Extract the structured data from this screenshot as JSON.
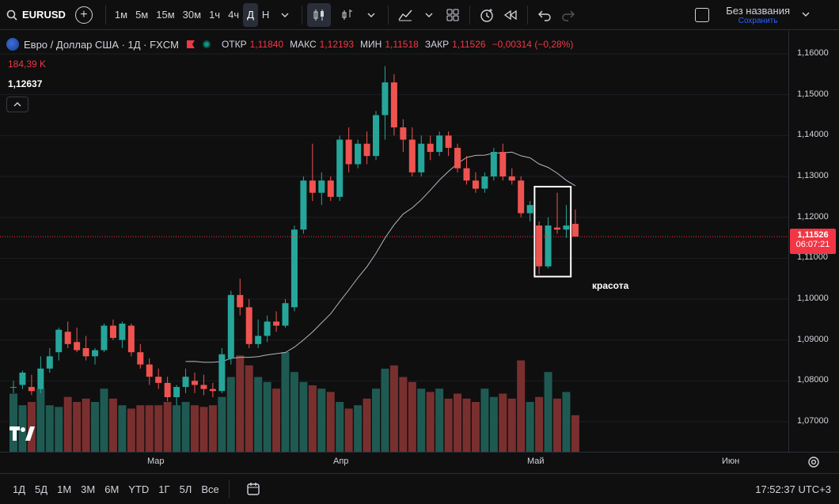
{
  "toolbar": {
    "symbol": "EURUSD",
    "timeframes": [
      "1м",
      "5м",
      "15м",
      "30м",
      "1ч",
      "4ч",
      "Д",
      "Н"
    ],
    "active_timeframe": "Д",
    "layout_name": "Без названия",
    "layout_status": "Сохранить"
  },
  "legend": {
    "title": "Евро / Доллар США · 1Д · FXCM",
    "open_label": "ОТКР",
    "open": "1,11840",
    "high_label": "МАКС",
    "high": "1,12193",
    "low_label": "МИН",
    "low": "1,11518",
    "close_label": "ЗАКР",
    "close": "1,11526",
    "change": "−0,00314 (−0,28%)",
    "volume": "184,39 K",
    "ma_value": "1,12637"
  },
  "price_axis": [
    "1,16000",
    "1,15000",
    "1,14000",
    "1,13000",
    "1,12000",
    "1,11000",
    "1,10000",
    "1,09000",
    "1,08000",
    "1,07000"
  ],
  "current_price": {
    "price": "1,11526",
    "countdown": "06:07:21"
  },
  "time_axis": [
    "Мар",
    "Апр",
    "Май",
    "Июн"
  ],
  "annotation": {
    "label": "красота"
  },
  "bottom": {
    "ranges": [
      "1Д",
      "5Д",
      "1М",
      "3М",
      "6М",
      "YTD",
      "1Г",
      "5Л",
      "Все"
    ],
    "clock": "17:52:37 UTC+3"
  },
  "colors": {
    "up": "#26a69a",
    "down": "#ef5350",
    "vol_up": "#1f5a52",
    "vol_down": "#7a2f2f"
  },
  "chart_data": {
    "type": "candlestick",
    "y_range": [
      1.065,
      1.168
    ],
    "candles": [
      {
        "o": 1.0785,
        "h": 1.08,
        "l": 1.077,
        "c": 1.0785
      },
      {
        "o": 1.079,
        "h": 1.0825,
        "l": 1.078,
        "c": 1.082
      },
      {
        "o": 1.0785,
        "h": 1.0815,
        "l": 1.0765,
        "c": 1.0775
      },
      {
        "o": 1.078,
        "h": 1.086,
        "l": 1.077,
        "c": 1.083
      },
      {
        "o": 1.083,
        "h": 1.088,
        "l": 1.082,
        "c": 1.086
      },
      {
        "o": 1.087,
        "h": 1.093,
        "l": 1.085,
        "c": 1.0925
      },
      {
        "o": 1.092,
        "h": 1.0945,
        "l": 1.088,
        "c": 1.089
      },
      {
        "o": 1.0895,
        "h": 1.093,
        "l": 1.087,
        "c": 1.0875
      },
      {
        "o": 1.088,
        "h": 1.091,
        "l": 1.085,
        "c": 1.086
      },
      {
        "o": 1.086,
        "h": 1.088,
        "l": 1.084,
        "c": 1.0875
      },
      {
        "o": 1.0875,
        "h": 1.094,
        "l": 1.087,
        "c": 1.0935
      },
      {
        "o": 1.0935,
        "h": 1.095,
        "l": 1.09,
        "c": 1.0905
      },
      {
        "o": 1.09,
        "h": 1.0945,
        "l": 1.088,
        "c": 1.094
      },
      {
        "o": 1.0935,
        "h": 1.094,
        "l": 1.086,
        "c": 1.087
      },
      {
        "o": 1.087,
        "h": 1.089,
        "l": 1.083,
        "c": 1.084
      },
      {
        "o": 1.084,
        "h": 1.0855,
        "l": 1.079,
        "c": 1.081
      },
      {
        "o": 1.081,
        "h": 1.083,
        "l": 1.078,
        "c": 1.0795
      },
      {
        "o": 1.0795,
        "h": 1.081,
        "l": 1.075,
        "c": 1.076
      },
      {
        "o": 1.076,
        "h": 1.079,
        "l": 1.074,
        "c": 1.0785
      },
      {
        "o": 1.0785,
        "h": 1.083,
        "l": 1.077,
        "c": 1.081
      },
      {
        "o": 1.08,
        "h": 1.082,
        "l": 1.077,
        "c": 1.079
      },
      {
        "o": 1.079,
        "h": 1.0815,
        "l": 1.0765,
        "c": 1.078
      },
      {
        "o": 1.078,
        "h": 1.0795,
        "l": 1.076,
        "c": 1.0775
      },
      {
        "o": 1.0775,
        "h": 1.088,
        "l": 1.077,
        "c": 1.0865
      },
      {
        "o": 1.0855,
        "h": 1.102,
        "l": 1.084,
        "c": 1.101
      },
      {
        "o": 1.101,
        "h": 1.105,
        "l": 1.096,
        "c": 1.098
      },
      {
        "o": 1.098,
        "h": 1.1,
        "l": 1.088,
        "c": 1.089
      },
      {
        "o": 1.089,
        "h": 1.095,
        "l": 1.088,
        "c": 1.091
      },
      {
        "o": 1.091,
        "h": 1.096,
        "l": 1.0895,
        "c": 1.0945
      },
      {
        "o": 1.0945,
        "h": 1.097,
        "l": 1.092,
        "c": 1.0935
      },
      {
        "o": 1.0935,
        "h": 1.1,
        "l": 1.093,
        "c": 1.099
      },
      {
        "o": 1.098,
        "h": 1.118,
        "l": 1.097,
        "c": 1.117
      },
      {
        "o": 1.117,
        "h": 1.13,
        "l": 1.116,
        "c": 1.129
      },
      {
        "o": 1.129,
        "h": 1.138,
        "l": 1.124,
        "c": 1.126
      },
      {
        "o": 1.126,
        "h": 1.131,
        "l": 1.123,
        "c": 1.129
      },
      {
        "o": 1.129,
        "h": 1.13,
        "l": 1.124,
        "c": 1.125
      },
      {
        "o": 1.125,
        "h": 1.14,
        "l": 1.124,
        "c": 1.139
      },
      {
        "o": 1.139,
        "h": 1.142,
        "l": 1.131,
        "c": 1.133
      },
      {
        "o": 1.133,
        "h": 1.139,
        "l": 1.132,
        "c": 1.138
      },
      {
        "o": 1.138,
        "h": 1.141,
        "l": 1.133,
        "c": 1.135
      },
      {
        "o": 1.135,
        "h": 1.146,
        "l": 1.134,
        "c": 1.145
      },
      {
        "o": 1.145,
        "h": 1.157,
        "l": 1.139,
        "c": 1.153
      },
      {
        "o": 1.153,
        "h": 1.155,
        "l": 1.14,
        "c": 1.142
      },
      {
        "o": 1.142,
        "h": 1.144,
        "l": 1.136,
        "c": 1.139
      },
      {
        "o": 1.139,
        "h": 1.142,
        "l": 1.13,
        "c": 1.131
      },
      {
        "o": 1.131,
        "h": 1.14,
        "l": 1.13,
        "c": 1.138
      },
      {
        "o": 1.138,
        "h": 1.14,
        "l": 1.134,
        "c": 1.136
      },
      {
        "o": 1.136,
        "h": 1.141,
        "l": 1.135,
        "c": 1.14
      },
      {
        "o": 1.14,
        "h": 1.141,
        "l": 1.135,
        "c": 1.137
      },
      {
        "o": 1.137,
        "h": 1.138,
        "l": 1.131,
        "c": 1.132
      },
      {
        "o": 1.132,
        "h": 1.135,
        "l": 1.128,
        "c": 1.129
      },
      {
        "o": 1.129,
        "h": 1.131,
        "l": 1.126,
        "c": 1.127
      },
      {
        "o": 1.127,
        "h": 1.131,
        "l": 1.126,
        "c": 1.13
      },
      {
        "o": 1.13,
        "h": 1.137,
        "l": 1.129,
        "c": 1.136
      },
      {
        "o": 1.136,
        "h": 1.138,
        "l": 1.129,
        "c": 1.13
      },
      {
        "o": 1.13,
        "h": 1.132,
        "l": 1.128,
        "c": 1.129
      },
      {
        "o": 1.129,
        "h": 1.13,
        "l": 1.12,
        "c": 1.121
      },
      {
        "o": 1.121,
        "h": 1.124,
        "l": 1.119,
        "c": 1.123
      },
      {
        "o": 1.118,
        "h": 1.119,
        "l": 1.106,
        "c": 1.108
      },
      {
        "o": 1.108,
        "h": 1.12,
        "l": 1.1075,
        "c": 1.118
      },
      {
        "o": 1.1175,
        "h": 1.126,
        "l": 1.116,
        "c": 1.117
      },
      {
        "o": 1.117,
        "h": 1.123,
        "l": 1.115,
        "c": 1.118
      },
      {
        "o": 1.1184,
        "h": 1.1219,
        "l": 1.1152,
        "c": 1.1153
      }
    ],
    "volume": [
      35,
      28,
      30,
      38,
      28,
      27,
      33,
      30,
      32,
      30,
      38,
      32,
      28,
      26,
      28,
      28,
      28,
      30,
      28,
      30,
      28,
      27,
      28,
      33,
      45,
      58,
      52,
      45,
      42,
      38,
      60,
      48,
      42,
      40,
      38,
      36,
      30,
      26,
      28,
      32,
      38,
      50,
      52,
      45,
      42,
      38,
      36,
      38,
      32,
      35,
      32,
      30,
      38,
      33,
      35,
      32,
      55,
      30,
      33,
      48,
      32,
      36,
      22
    ]
  }
}
